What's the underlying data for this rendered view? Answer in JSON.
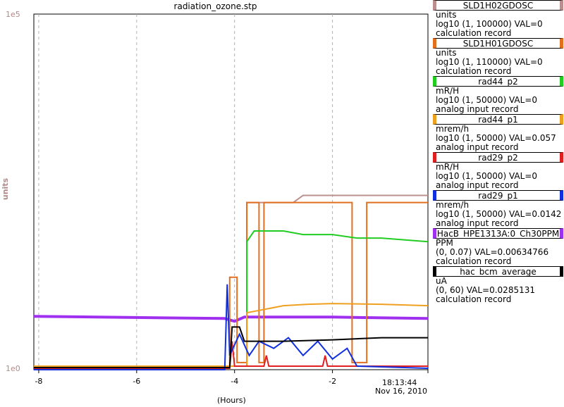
{
  "chart_data": {
    "type": "line",
    "title": "radiation_ozone.stp",
    "ylabel": "units",
    "xlabel": "(Hours)",
    "y_ticks": [
      "1e5",
      "1e0"
    ],
    "x_ticks": [
      "-8",
      "-6",
      "-4",
      "-2"
    ],
    "x_end_time": "18:13:44",
    "x_end_date": "Nov 16, 2010",
    "xlim": [
      -8.1,
      -0.05
    ],
    "ylim": [
      0,
      5
    ],
    "y_scale": "log",
    "grid": true,
    "legend_position": "right",
    "series": [
      {
        "name": "SLD1H02GDOSC",
        "units": "units",
        "range": "log10 (1, 100000) VAL=0",
        "record": "calculation record",
        "color": "#bc8f8f",
        "points": [
          [
            -8.1,
            0.05
          ],
          [
            -3.75,
            0.05
          ],
          [
            -3.75,
            2.35
          ],
          [
            -3.6,
            2.35
          ],
          [
            -2.8,
            2.35
          ],
          [
            -2.6,
            2.45
          ],
          [
            -1.5,
            2.45
          ],
          [
            -0.05,
            2.45
          ]
        ]
      },
      {
        "name": "SLD1H01GDOSC",
        "units": "units",
        "range": "log10 (1, 110000) VAL=0",
        "record": "calculation record",
        "color": "#e07020",
        "points": [
          [
            -8.1,
            0.05
          ],
          [
            -4.1,
            0.05
          ],
          [
            -4.1,
            1.3
          ],
          [
            -3.95,
            1.3
          ],
          [
            -3.95,
            0.1
          ],
          [
            -3.75,
            0.1
          ],
          [
            -3.75,
            2.35
          ],
          [
            -3.5,
            2.35
          ],
          [
            -3.5,
            0.1
          ],
          [
            -3.4,
            0.1
          ],
          [
            -3.4,
            2.35
          ],
          [
            -1.6,
            2.35
          ],
          [
            -1.6,
            0.1
          ],
          [
            -1.3,
            0.1
          ],
          [
            -1.3,
            2.35
          ],
          [
            -0.05,
            2.35
          ]
        ]
      },
      {
        "name": "rad44_p2",
        "units": "mR/H",
        "range": "log10 (1, 50000) VAL=0",
        "record": "analog input record",
        "color": "#22cc22",
        "points": [
          [
            -8.1,
            0.05
          ],
          [
            -3.75,
            0.05
          ],
          [
            -3.75,
            1.8
          ],
          [
            -3.6,
            1.95
          ],
          [
            -3.0,
            1.95
          ],
          [
            -2.6,
            1.9
          ],
          [
            -2.0,
            1.9
          ],
          [
            -1.5,
            1.85
          ],
          [
            -1.0,
            1.85
          ],
          [
            -0.05,
            1.8
          ]
        ]
      },
      {
        "name": "rad44_p1",
        "units": "mrem/h",
        "range": "log10 (1, 50000) VAL=0.057",
        "record": "analog input record",
        "color": "#f0a020",
        "points": [
          [
            -8.1,
            0.05
          ],
          [
            -3.75,
            0.05
          ],
          [
            -3.75,
            0.8
          ],
          [
            -3.0,
            0.9
          ],
          [
            -2.5,
            0.92
          ],
          [
            -2.0,
            0.93
          ],
          [
            -1.0,
            0.92
          ],
          [
            -0.05,
            0.9
          ]
        ]
      },
      {
        "name": "rad29_p2",
        "units": "mR/H",
        "range": "log10 (1, 50000) VAL=0",
        "record": "analog input record",
        "color": "#e02020",
        "points": [
          [
            -8.1,
            0.02
          ],
          [
            -4.1,
            0.02
          ],
          [
            -4.05,
            0.4
          ],
          [
            -4.0,
            0.05
          ],
          [
            -3.4,
            0.05
          ],
          [
            -3.35,
            0.2
          ],
          [
            -3.3,
            0.05
          ],
          [
            -2.2,
            0.05
          ],
          [
            -2.15,
            0.2
          ],
          [
            -2.1,
            0.05
          ],
          [
            -0.05,
            0.05
          ]
        ]
      },
      {
        "name": "rad29_p1",
        "units": "mrem/h",
        "range": "log10 (1, 50000) VAL=0.0142",
        "record": "analog input record",
        "color": "#1030e0",
        "points": [
          [
            -8.1,
            0.0
          ],
          [
            -4.2,
            0.0
          ],
          [
            -4.15,
            1.2
          ],
          [
            -4.1,
            0.2
          ],
          [
            -3.9,
            0.5
          ],
          [
            -3.7,
            0.2
          ],
          [
            -3.5,
            0.4
          ],
          [
            -3.2,
            0.3
          ],
          [
            -2.9,
            0.45
          ],
          [
            -2.6,
            0.2
          ],
          [
            -2.3,
            0.4
          ],
          [
            -2.0,
            0.15
          ],
          [
            -1.7,
            0.3
          ],
          [
            -1.5,
            0.05
          ],
          [
            -0.05,
            0.02
          ]
        ]
      },
      {
        "name": "HacB_HPE1313A:0_Ch30PPM",
        "units": "PPM",
        "range": "(0, 0.07) VAL=0.00634766",
        "record": "calculation record",
        "color": "#a030f0",
        "points": [
          [
            -8.1,
            0.75
          ],
          [
            -4.2,
            0.72
          ],
          [
            -4.0,
            0.68
          ],
          [
            -3.8,
            0.74
          ],
          [
            -2.0,
            0.74
          ],
          [
            -0.05,
            0.72
          ]
        ]
      },
      {
        "name": "hac_bcm_average",
        "units": "uA",
        "range": "(0, 60) VAL=0.0285131",
        "record": "calculation record",
        "color": "#000000",
        "points": [
          [
            -8.1,
            0.03
          ],
          [
            -4.1,
            0.03
          ],
          [
            -4.05,
            0.6
          ],
          [
            -3.9,
            0.6
          ],
          [
            -3.8,
            0.4
          ],
          [
            -3.0,
            0.4
          ],
          [
            -2.0,
            0.42
          ],
          [
            -1.0,
            0.45
          ],
          [
            -0.05,
            0.45
          ]
        ]
      }
    ]
  }
}
